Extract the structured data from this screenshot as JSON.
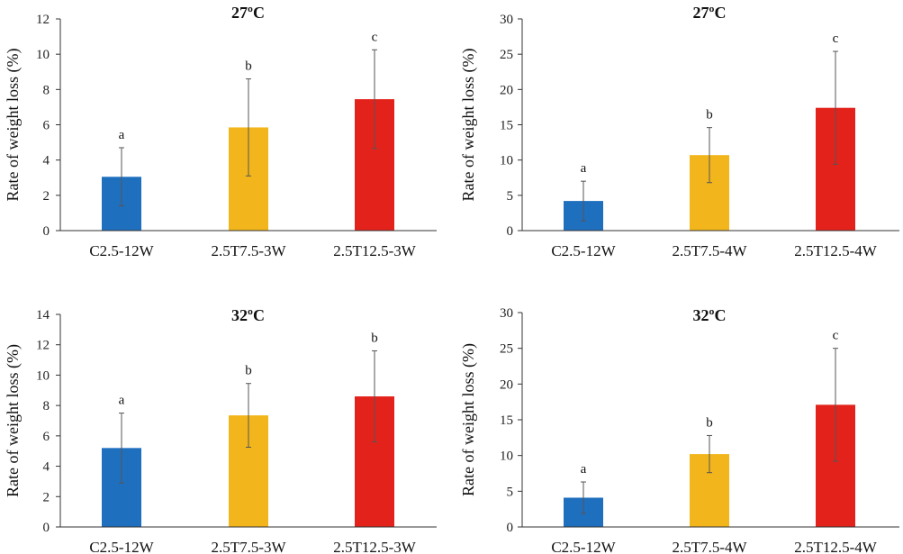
{
  "chart_data": [
    {
      "type": "bar",
      "title": "27ºC",
      "ylabel": "Rate of  weight loss (%)",
      "xlabel": "",
      "ylim": [
        0,
        12
      ],
      "yticks": [
        0,
        2,
        4,
        6,
        8,
        10,
        12
      ],
      "categories": [
        "C2.5-12W",
        "2.5T7.5-3W",
        "2.5T12.5-3W"
      ],
      "values": [
        3.05,
        5.85,
        7.45
      ],
      "errors": [
        1.65,
        2.75,
        2.8
      ],
      "letters": [
        "a",
        "b",
        "c"
      ],
      "colors": [
        "#1f6fbf",
        "#f2b61c",
        "#e3231b"
      ]
    },
    {
      "type": "bar",
      "title": "27ºC",
      "ylabel": "Rate of weight loss (%)",
      "xlabel": "",
      "ylim": [
        0,
        30
      ],
      "yticks": [
        0,
        5,
        10,
        15,
        20,
        25,
        30
      ],
      "categories": [
        "C2.5-12W",
        "2.5T7.5-4W",
        "2.5T12.5-4W"
      ],
      "values": [
        4.2,
        10.7,
        17.4
      ],
      "errors": [
        2.8,
        3.9,
        8.0
      ],
      "letters": [
        "a",
        "b",
        "c"
      ],
      "colors": [
        "#1f6fbf",
        "#f2b61c",
        "#e3231b"
      ]
    },
    {
      "type": "bar",
      "title": "32ºC",
      "ylabel": "Rate of weight loss (%)",
      "xlabel": "",
      "ylim": [
        0,
        14
      ],
      "yticks": [
        0,
        2,
        4,
        6,
        8,
        10,
        12,
        14
      ],
      "categories": [
        "C2.5-12W",
        "2.5T7.5-3W",
        "2.5T12.5-3W"
      ],
      "values": [
        5.2,
        7.35,
        8.6
      ],
      "errors": [
        2.3,
        2.1,
        3.0
      ],
      "letters": [
        "a",
        "b",
        "b"
      ],
      "colors": [
        "#1f6fbf",
        "#f2b61c",
        "#e3231b"
      ]
    },
    {
      "type": "bar",
      "title": "32ºC",
      "ylabel": "Rate of weight loss (%)",
      "xlabel": "",
      "ylim": [
        0,
        30
      ],
      "yticks": [
        0,
        5,
        10,
        15,
        20,
        25,
        30
      ],
      "categories": [
        "C2.5-12W",
        "2.5T7.5-4W",
        "2.5T12.5-4W"
      ],
      "values": [
        4.1,
        10.2,
        17.1
      ],
      "errors": [
        2.2,
        2.6,
        7.9
      ],
      "letters": [
        "a",
        "b",
        "c"
      ],
      "colors": [
        "#1f6fbf",
        "#f2b61c",
        "#e3231b"
      ]
    }
  ]
}
